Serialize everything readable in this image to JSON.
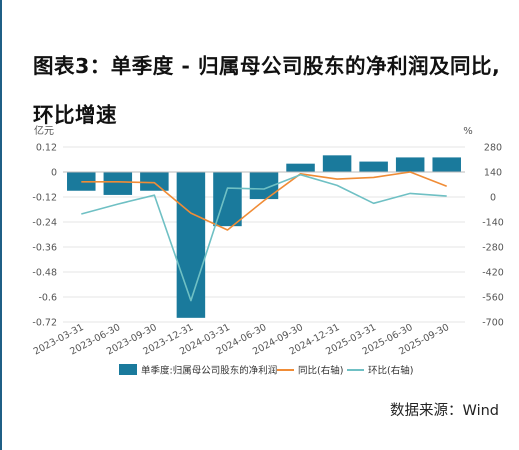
{
  "header": {
    "title": "图表3：单季度 - 归属母公司股东的净利润及同比,环比增速"
  },
  "footer": {
    "source": "数据来源：Wind"
  },
  "colors": {
    "bar": "#1a7a9c",
    "yoy": "#f08c36",
    "qoq": "#6fc0c4",
    "grid": "#e6e6e6",
    "accent": "#1f5f86"
  },
  "chart_data": {
    "type": "bar",
    "title": "",
    "categories": [
      "2023-03-31",
      "2023-06-30",
      "2023-09-30",
      "2023-12-31",
      "2024-03-31",
      "2024-06-30",
      "2024-09-30",
      "2024-12-31",
      "2025-03-31",
      "2025-06-30",
      "2025-09-30"
    ],
    "series": [
      {
        "name": "单季度:归属母公司股东的净利润",
        "type": "bar",
        "axis": "left",
        "values": [
          -0.09,
          -0.11,
          -0.09,
          -0.7,
          -0.26,
          -0.13,
          0.04,
          0.08,
          0.05,
          0.07,
          0.07
        ]
      },
      {
        "name": "同比(右轴)",
        "type": "line",
        "axis": "right",
        "values": [
          85,
          85,
          80,
          -90,
          -185,
          -20,
          130,
          100,
          110,
          140,
          60
        ]
      },
      {
        "name": "环比(右轴)",
        "type": "line",
        "axis": "right",
        "values": [
          -95,
          -40,
          10,
          -580,
          50,
          45,
          125,
          65,
          -35,
          20,
          5
        ]
      }
    ],
    "y_left": {
      "label": "亿元",
      "ylim": [
        -0.72,
        0.12
      ],
      "ticks": [
        "0.12",
        "0",
        "-0.12",
        "-0.24",
        "-0.36",
        "-0.48",
        "-0.6",
        "-0.72"
      ]
    },
    "y_right": {
      "label": "%",
      "ylim": [
        -700,
        280
      ],
      "ticks": [
        "280",
        "140",
        "0",
        "-140",
        "-280",
        "-420",
        "-560",
        "-700"
      ]
    },
    "grid": true,
    "legend": "bottom"
  }
}
